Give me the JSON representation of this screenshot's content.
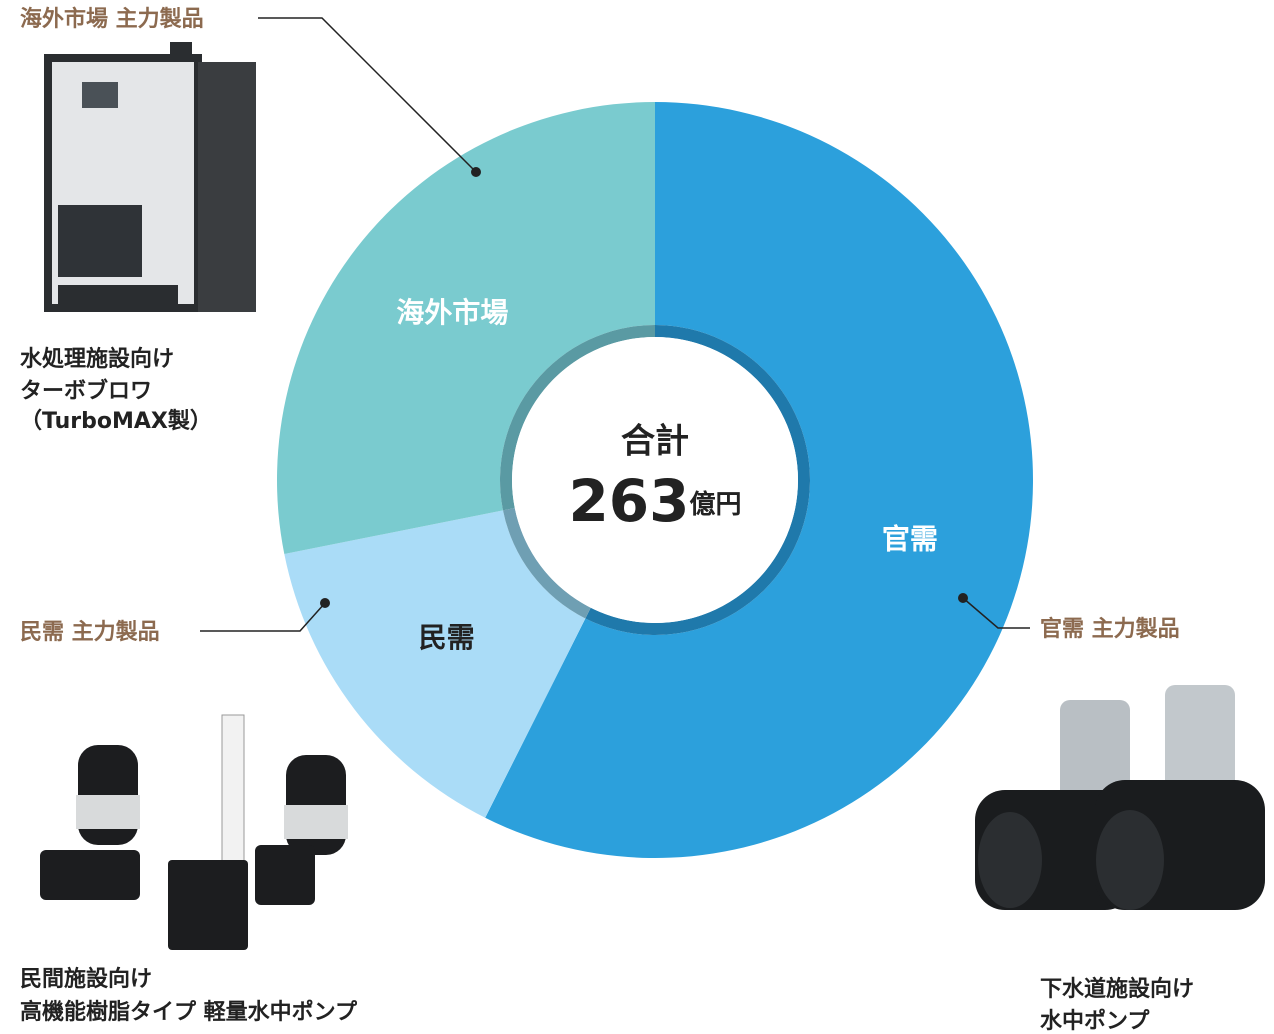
{
  "chart_data": {
    "type": "donut",
    "center_label": "合計",
    "total": 263,
    "total_unit": "億円",
    "categories": [
      "官需",
      "民需",
      "海外市場"
    ],
    "values": [
      151,
      38,
      74
    ],
    "colors": [
      "#2ca0dc",
      "#aadcf7",
      "#7acbcf"
    ],
    "label_colors": [
      "#ffffff",
      "#222222",
      "#ffffff"
    ],
    "ring_colors": [
      "#1f79ab",
      "#6f9fb3",
      "#5a9aa3"
    ],
    "annotations": [
      {
        "label": "官需 主力製品",
        "caption": [
          "下水道施設向け",
          "水中ポンプ"
        ]
      },
      {
        "label": "民需 主力製品",
        "caption": [
          "民間施設向け",
          "高機能樹脂タイプ 軽量水中ポンプ"
        ]
      },
      {
        "label": "海外市場 主力製品",
        "caption": [
          "水処理施設向け",
          "ターボブロワ",
          "（TurboMAX製）"
        ]
      }
    ]
  }
}
